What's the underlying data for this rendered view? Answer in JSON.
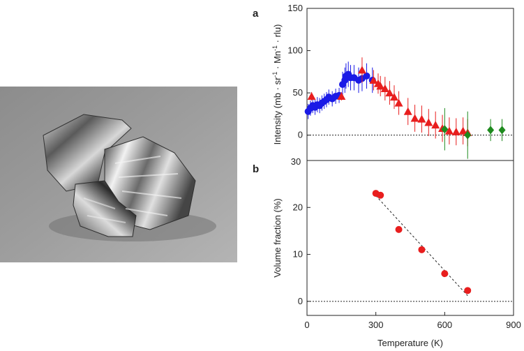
{
  "photo": {
    "icon": "metal-chunks-photo"
  },
  "chart_data": [
    {
      "type": "scatter",
      "panel_label": "a",
      "ylabel": "Intensity (mb · sr⁻¹ · Mn⁻¹ · r.l.u.)",
      "ylabel_main": "Intensity (mb · sr",
      "ylabel_sup1": "-1",
      "ylabel_mid": " · Mn",
      "ylabel_sup2": "-1",
      "ylabel_tail": " · rlu)",
      "xlim": [
        0,
        900
      ],
      "ylim": [
        -30,
        150
      ],
      "yticks": [
        0,
        50,
        100,
        150
      ],
      "ytick_labels": [
        "0",
        "50",
        "100",
        "150"
      ],
      "bottom_tick_label": "30",
      "zero_line": "dotted",
      "series": [
        {
          "color": "#1a1ae6",
          "marker": "circle",
          "points": [
            [
              5,
              28,
              9
            ],
            [
              15,
              32,
              9
            ],
            [
              25,
              35,
              9
            ],
            [
              35,
              33,
              9
            ],
            [
              45,
              36,
              9
            ],
            [
              55,
              35,
              9
            ],
            [
              65,
              38,
              9
            ],
            [
              75,
              40,
              9
            ],
            [
              85,
              42,
              9
            ],
            [
              95,
              45,
              9
            ],
            [
              110,
              43,
              9
            ],
            [
              125,
              46,
              9
            ],
            [
              140,
              47,
              9
            ],
            [
              155,
              60,
              15
            ],
            [
              165,
              65,
              15
            ],
            [
              170,
              70,
              15
            ],
            [
              180,
              72,
              15
            ],
            [
              190,
              68,
              15
            ],
            [
              205,
              68,
              15
            ],
            [
              225,
              65,
              15
            ],
            [
              240,
              67,
              15
            ],
            [
              260,
              70,
              15
            ],
            [
              285,
              65,
              15
            ]
          ]
        },
        {
          "color": "#e81e1e",
          "marker": "triangle",
          "points": [
            [
              20,
              46,
              5
            ],
            [
              150,
              46,
              5
            ],
            [
              240,
              77,
              15
            ],
            [
              290,
              65,
              12
            ],
            [
              310,
              61,
              12
            ],
            [
              320,
              58,
              12
            ],
            [
              340,
              55,
              14
            ],
            [
              360,
              50,
              14
            ],
            [
              380,
              45,
              14
            ],
            [
              400,
              38,
              14
            ],
            [
              440,
              28,
              16
            ],
            [
              470,
              20,
              16
            ],
            [
              500,
              19,
              16
            ],
            [
              530,
              15,
              16
            ],
            [
              560,
              12,
              16
            ],
            [
              590,
              8,
              16
            ],
            [
              620,
              5,
              16
            ],
            [
              650,
              4,
              16
            ],
            [
              680,
              5,
              16
            ],
            [
              700,
              3,
              16
            ]
          ]
        },
        {
          "color": "#1e8a1e",
          "marker": "diamond",
          "points": [
            [
              600,
              7,
              25
            ],
            [
              700,
              0,
              28
            ],
            [
              800,
              6,
              13
            ],
            [
              850,
              6,
              13
            ]
          ]
        }
      ]
    },
    {
      "type": "scatter",
      "panel_label": "b",
      "ylabel": "Volume fraction (%)",
      "xlabel": "Temperature (K)",
      "xlim": [
        0,
        900
      ],
      "ylim": [
        -3,
        30
      ],
      "yticks": [
        0,
        10,
        20
      ],
      "ytick_labels": [
        "0",
        "10",
        "20"
      ],
      "xticks": [
        0,
        300,
        600,
        900
      ],
      "xtick_labels": [
        "0",
        "300",
        "600",
        "900"
      ],
      "zero_line": "dotted",
      "series": [
        {
          "color": "#e81e1e",
          "marker": "circle",
          "points": [
            [
              300,
              23
            ],
            [
              320,
              22.6
            ],
            [
              400,
              15.3
            ],
            [
              500,
              11
            ],
            [
              600,
              5.9
            ],
            [
              700,
              2.3
            ]
          ]
        }
      ],
      "fit_line": {
        "x": [
          300,
          700
        ],
        "y": [
          22.5,
          1.2
        ],
        "style": "dashed"
      }
    }
  ]
}
